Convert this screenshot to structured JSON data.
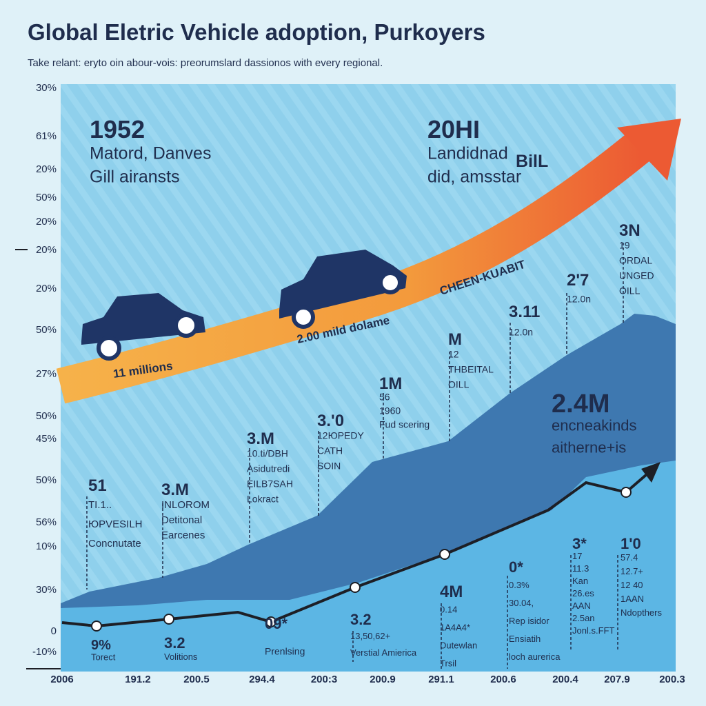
{
  "header": {
    "title": "Global Eletric Vehicle adoption, Purkoyers",
    "subtitle": "Take relant: eryto oin abour-vois: preorumslard dassionos with every regional."
  },
  "y_labels": [
    "30%",
    "61%",
    "20%",
    "50%",
    "20%",
    "20%",
    "20%",
    "50%",
    "27%",
    "50%",
    "45%",
    "50%",
    "56%",
    "10%",
    "30%",
    "0",
    "-10%"
  ],
  "x_labels": [
    "2006",
    "191.2",
    "200.5",
    "294.4",
    "200:3",
    "200.9",
    "291.1",
    "200.6",
    "200.4",
    "207.9",
    "200.3"
  ],
  "annotations": [
    {
      "lines": [
        "1952",
        "Matord, Danves",
        "Gill airansts"
      ]
    },
    {
      "lines": [
        "20HI",
        "Landidnad",
        "did, amsstar"
      ],
      "highlight": "BilL"
    },
    {
      "lines": [
        "CHEEN-KUABIT"
      ]
    },
    {
      "lines": [
        "11 millions"
      ]
    },
    {
      "lines": [
        "2.00 mild dolame"
      ]
    },
    {
      "lines": [
        "3N",
        "19",
        "ORDAL",
        "UNGED",
        "OILL"
      ]
    },
    {
      "lines": [
        "2'7",
        "12.0n"
      ]
    },
    {
      "lines": [
        "3.11",
        "12.0n"
      ]
    },
    {
      "lines": [
        "M",
        "12",
        "THBEITAL",
        "OILL"
      ]
    },
    {
      "lines": [
        "1M",
        "56",
        "1960",
        "Fud scering"
      ]
    },
    {
      "lines": [
        "3.'0",
        "12ЮPEDY",
        "CATH",
        "SOIN"
      ]
    },
    {
      "lines": [
        "3.M",
        "10.ti/DBH",
        "Asidutredi",
        "EILB7SAH",
        "Lokract"
      ]
    },
    {
      "lines": [
        "51",
        "TI.1..",
        "ЮPVESILH",
        "Concnutate"
      ]
    },
    {
      "lines": [
        "3.M",
        "INLOROM",
        "Detitonal",
        "Earcenes"
      ]
    },
    {
      "lines": [
        "2.4M",
        "encneakinds",
        "aitherne+is"
      ]
    },
    {
      "lines": [
        "0*",
        "0.3%",
        "30.04,",
        "Rep isidor",
        "Ensiatih",
        "loch aurerica"
      ]
    },
    {
      "lines": [
        "3*",
        "17",
        "11.3",
        "Kan",
        "26.es",
        "AAN",
        "2.5an",
        "Jonl.s.FFT"
      ]
    },
    {
      "lines": [
        "1'0",
        "57.4",
        "12.7+",
        "12 40",
        "1AAN",
        "Ndopthers"
      ]
    },
    {
      "lines": [
        "4M",
        "0.14",
        "1A4A4*",
        "Dutewlan",
        "Trsil"
      ]
    },
    {
      "lines": [
        "3.2",
        "13,50,62+",
        "Verstial Amierica"
      ]
    },
    {
      "lines": [
        "09*",
        "Prenlsing"
      ]
    },
    {
      "lines": [
        "3.2",
        "Volitions"
      ]
    },
    {
      "lines": [
        "9%",
        "Torect"
      ]
    }
  ]
}
